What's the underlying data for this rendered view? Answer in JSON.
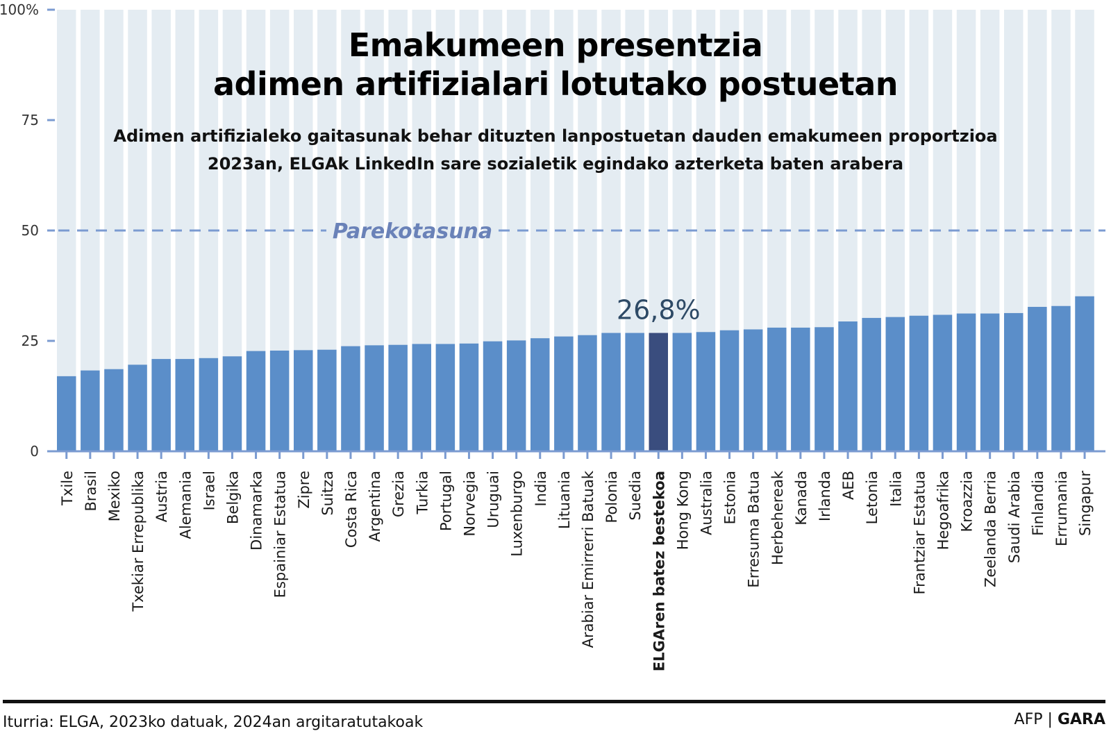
{
  "chart_data": {
    "type": "bar",
    "title": "Emakumeen presentzia adimen artifizialari lotutako postuetan",
    "title_lines": [
      "Emakumeen presentzia",
      "adimen artifizialari lotutako postuetan"
    ],
    "subtitle_lines": [
      "Adimen artifizialeko gaitasunak behar dituzten lanpostuetan dauden emakumeen proportzioa",
      "2023an, ELGAk LinkedIn sare sozialetik egindako azterketa baten arabera"
    ],
    "xlabel": "",
    "ylabel": "",
    "ylim": [
      0,
      100
    ],
    "yticks": [
      0,
      25,
      50,
      75,
      100
    ],
    "ytick_labels": [
      "0",
      "25",
      "50",
      "75",
      "100%"
    ],
    "grid": false,
    "legend": "none",
    "categories": [
      "Txile",
      "Brasil",
      "Mexiko",
      "Txekiar Errepublika",
      "Austria",
      "Alemania",
      "Israel",
      "Belgika",
      "Dinamarka",
      "Espainiar Estatua",
      "Zipre",
      "Suitza",
      "Costa Rica",
      "Argentina",
      "Grezia",
      "Turkia",
      "Portugal",
      "Norvegia",
      "Uruguai",
      "Luxenburgo",
      "India",
      "Lituania",
      "Arabiar Emirrerri Batuak",
      "Polonia",
      "Suedia",
      "ELGAren batez bestekoa",
      "Hong Kong",
      "Australia",
      "Estonia",
      "Erresuma Batua",
      "Herbehereak",
      "Kanada",
      "Irlanda",
      "AEB",
      "Letonia",
      "Italia",
      "Frantziar Estatua",
      "Hegoafrika",
      "Kroazzia",
      "Zeelanda Berria",
      "Saudi Arabia",
      "Finlandia",
      "Errumania",
      "Singapur"
    ],
    "values": [
      17.0,
      18.3,
      18.6,
      19.6,
      20.9,
      20.9,
      21.1,
      21.5,
      22.7,
      22.8,
      22.9,
      23.0,
      23.8,
      24.0,
      24.1,
      24.3,
      24.3,
      24.4,
      24.9,
      25.1,
      25.6,
      26.0,
      26.3,
      26.8,
      26.8,
      26.8,
      26.8,
      27.0,
      27.4,
      27.6,
      28.0,
      28.0,
      28.1,
      29.4,
      30.2,
      30.4,
      30.7,
      30.9,
      31.2,
      31.2,
      31.3,
      32.7,
      32.9,
      35.1
    ],
    "highlight": {
      "category": "ELGAren batez bestekoa",
      "value": 26.8,
      "label": "26,8%"
    },
    "reference_line": {
      "value": 50,
      "label": "Parekotasuna",
      "style": "dashed"
    },
    "colors": {
      "bar": "#5b8ec9",
      "highlight_bar": "#3a4d7e",
      "background_column": "#e4ecf2",
      "axis": "#7b9bd1",
      "reference_line": "#7b9bd1",
      "reference_label": "#6a82b8",
      "highlight_label": "#2e4a66"
    }
  },
  "footer": {
    "source": "Iturria: ELGA, 2023ko datuak, 2024an argitaratutakoak",
    "credit_agency": "AFP",
    "credit_separator": "|",
    "credit_outlet": "GARA"
  }
}
